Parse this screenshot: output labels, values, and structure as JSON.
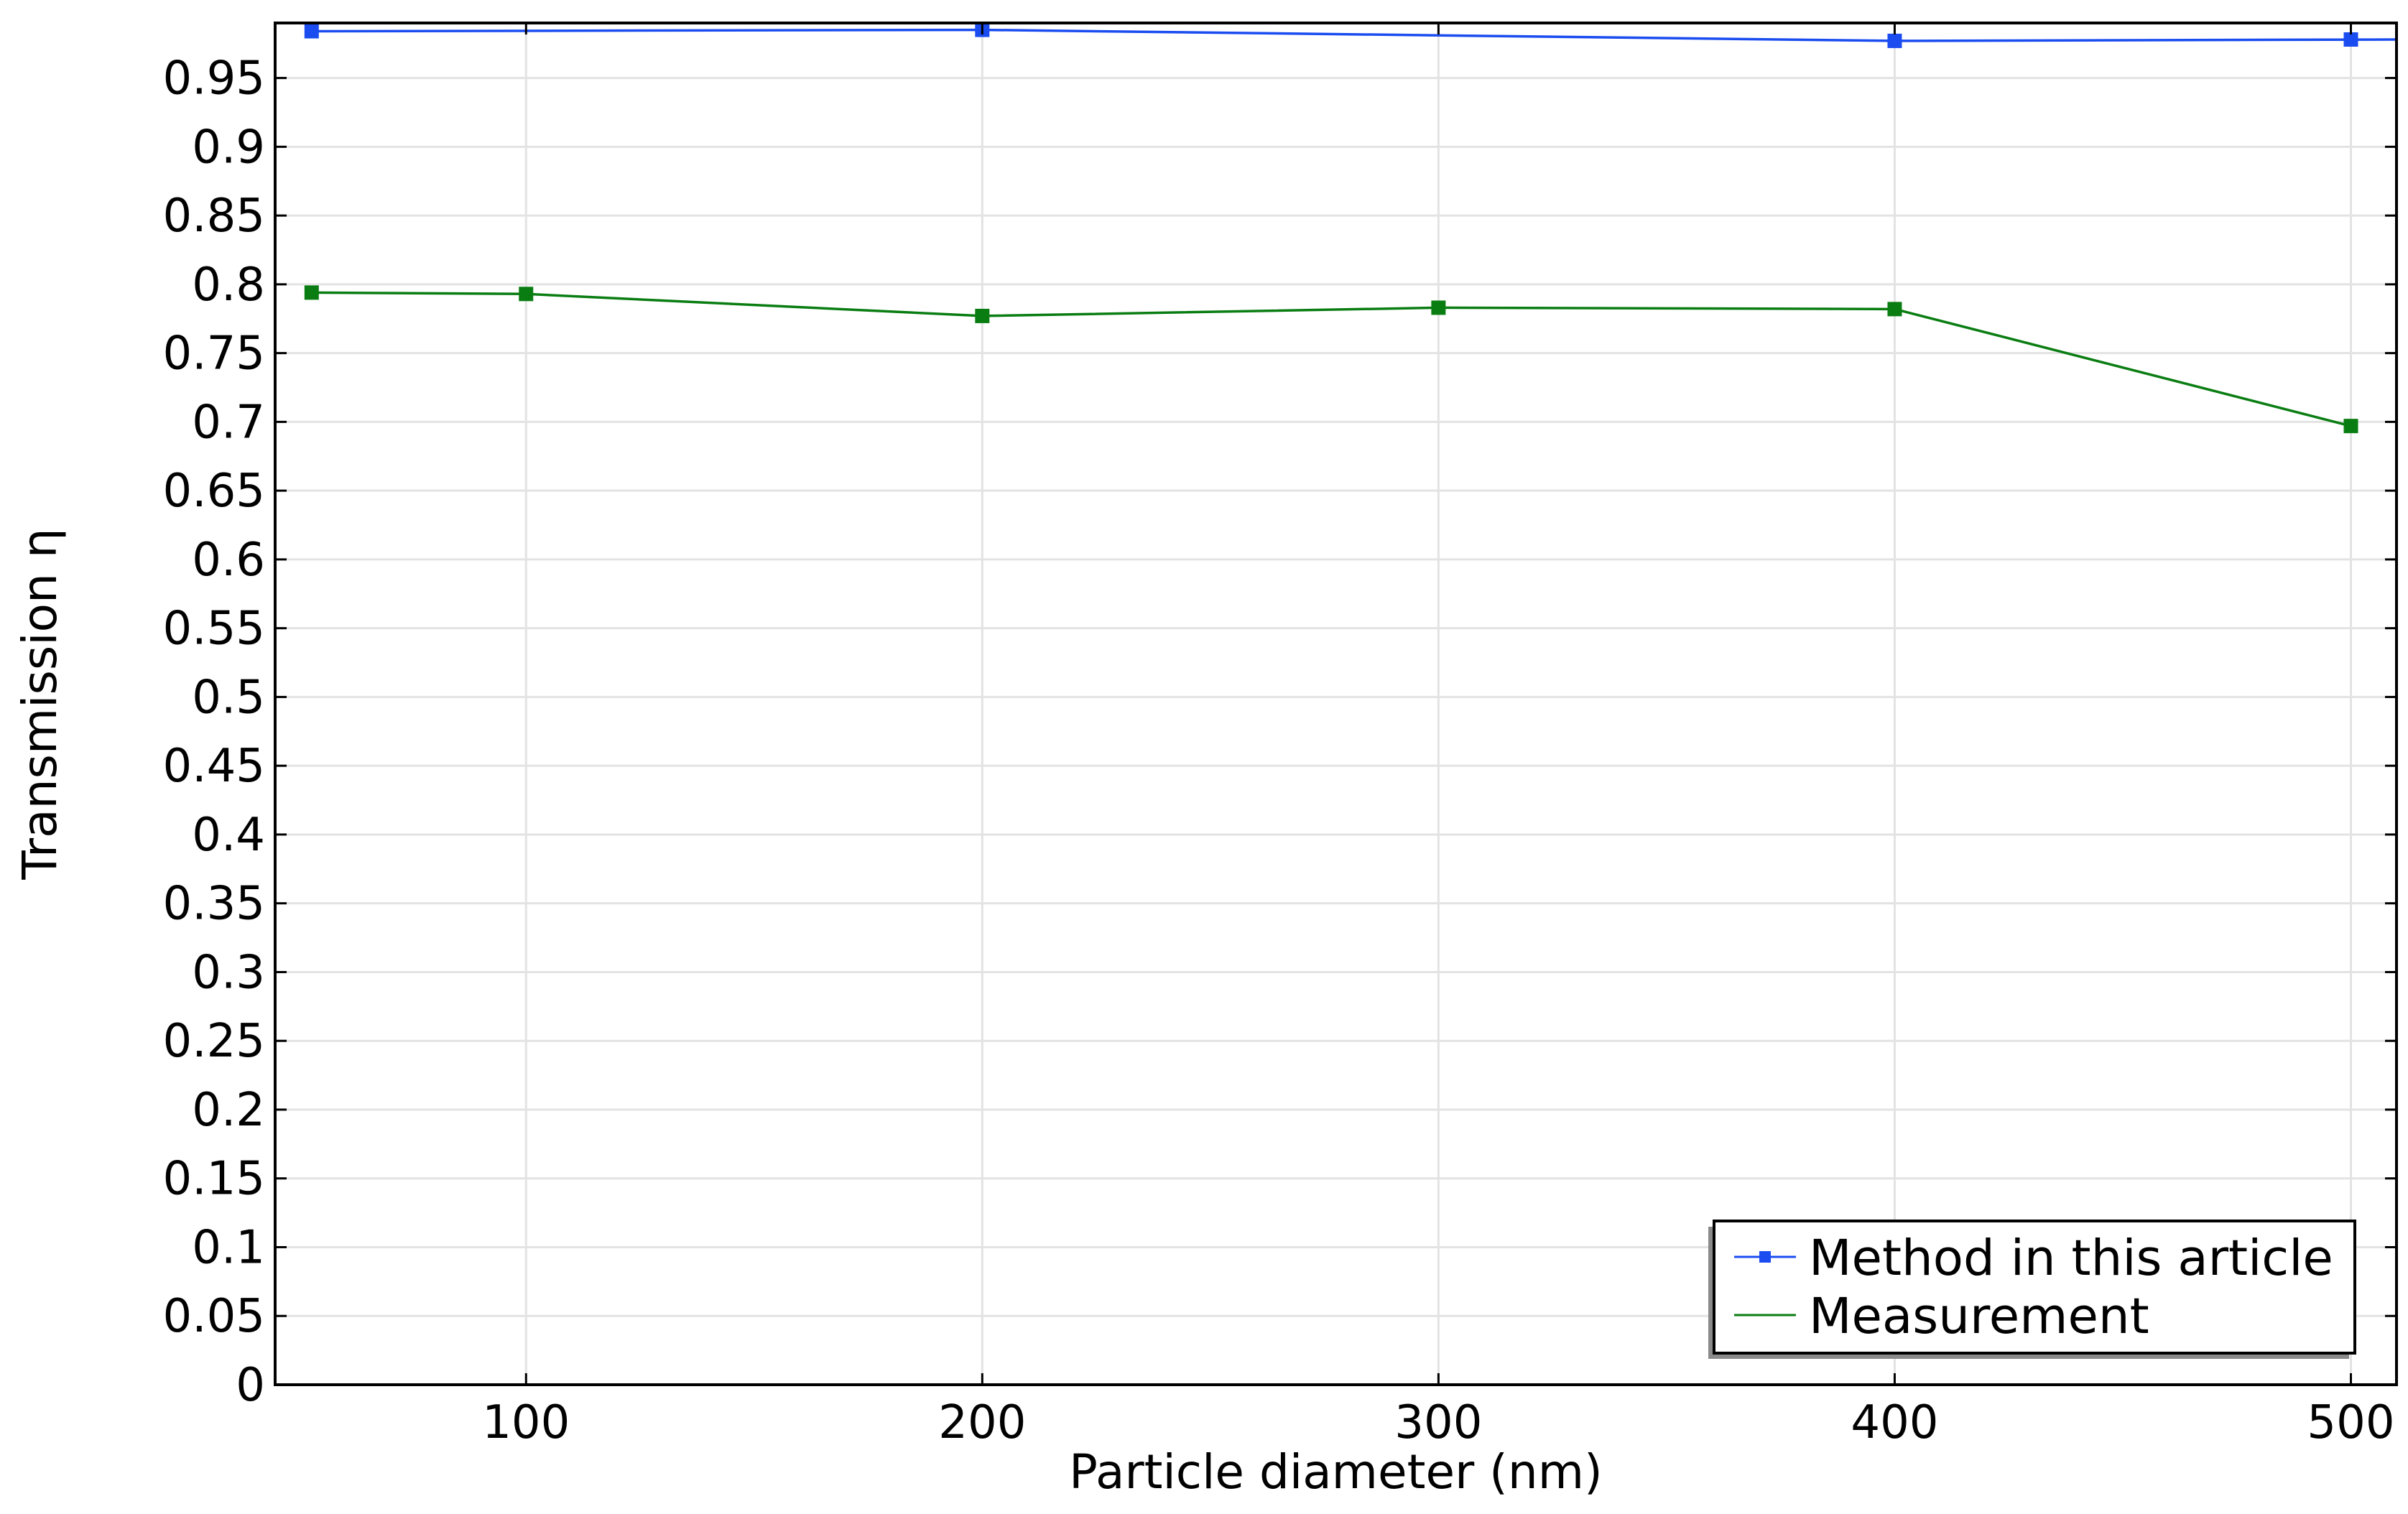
{
  "chart_data": {
    "type": "line",
    "xlabel": "Particle diameter (nm)",
    "ylabel": "Transmission η",
    "xlim": [
      45,
      510
    ],
    "ylim": [
      0,
      0.99
    ],
    "xticks": [
      100,
      200,
      300,
      400,
      500
    ],
    "yticks": [
      0,
      0.05,
      0.1,
      0.15,
      0.2,
      0.25,
      0.3,
      0.35,
      0.4,
      0.45,
      0.5,
      0.55,
      0.6,
      0.65,
      0.7,
      0.75,
      0.8,
      0.85,
      0.9,
      0.95
    ],
    "ytick_labels": [
      "0",
      "0.05",
      "0.1",
      "0.15",
      "0.2",
      "0.25",
      "0.3",
      "0.35",
      "0.4",
      "0.45",
      "0.5",
      "0.55",
      "0.6",
      "0.65",
      "0.7",
      "0.75",
      "0.8",
      "0.85",
      "0.9",
      "0.95"
    ],
    "xtick_labels": [
      "100",
      "200",
      "300",
      "400",
      "500"
    ],
    "grid": true,
    "legend_position": "bottom-right",
    "series": [
      {
        "name": "Method in this article",
        "color": "#1a4cf0",
        "marker": "square",
        "line_x": [
          53,
          200,
          300,
          400,
          510
        ],
        "line_y": [
          0.984,
          0.985,
          0.981,
          0.977,
          0.978
        ],
        "marker_x": [
          53,
          200,
          400,
          500
        ],
        "marker_y": [
          0.984,
          0.985,
          0.977,
          0.978
        ]
      },
      {
        "name": "Measurement",
        "color": "#0a7d12",
        "marker": "square",
        "line_x": [
          53,
          100,
          200,
          300,
          400,
          500
        ],
        "line_y": [
          0.794,
          0.793,
          0.777,
          0.783,
          0.782,
          0.697
        ],
        "marker_x": [
          53,
          100,
          200,
          300,
          400,
          500
        ],
        "marker_y": [
          0.794,
          0.793,
          0.777,
          0.783,
          0.782,
          0.697
        ]
      }
    ]
  }
}
